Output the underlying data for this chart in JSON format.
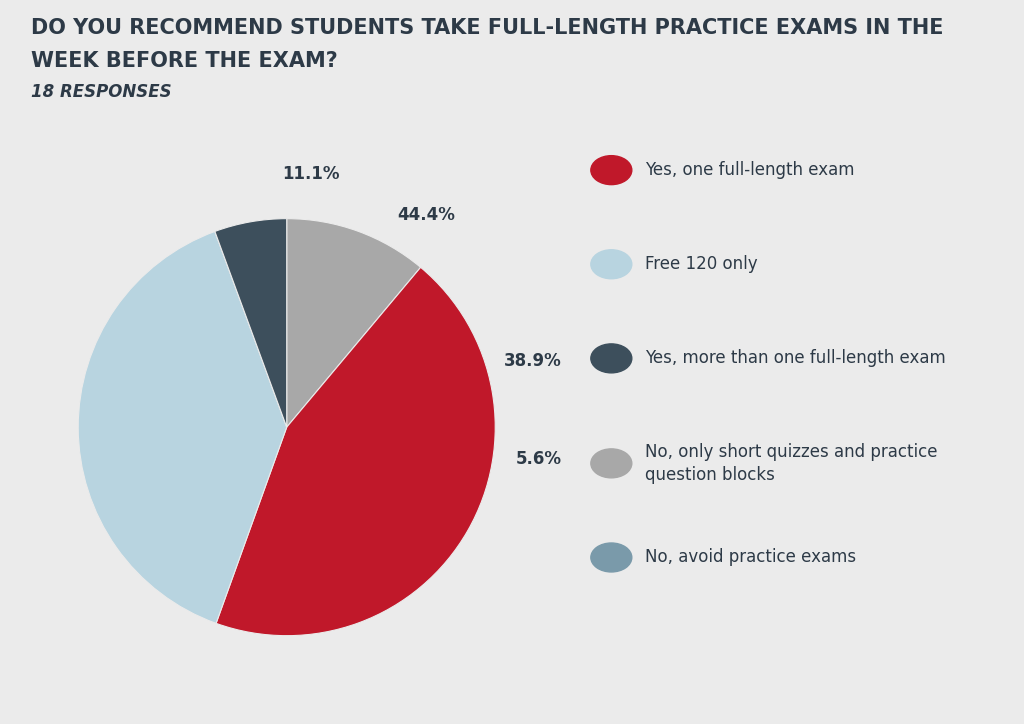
{
  "title_line1": "DO YOU RECOMMEND STUDENTS TAKE FULL-LENGTH PRACTICE EXAMS IN THE",
  "title_line2": "WEEK BEFORE THE EXAM?",
  "subtitle": "18 RESPONSES",
  "background_color": "#ebebeb",
  "slices": [
    11.1,
    44.4,
    38.9,
    5.6
  ],
  "colors": [
    "#a8a8a8",
    "#c0182a",
    "#b8d4e0",
    "#3d4f5c"
  ],
  "pct_labels": [
    "11.1%",
    "44.4%",
    "38.9%",
    "5.6%"
  ],
  "legend_labels": [
    "Yes, one full-length exam",
    "Free 120 only",
    "Yes, more than one full-length exam",
    "No, only short quizzes and practice\nquestion blocks",
    "No, avoid practice exams"
  ],
  "legend_colors": [
    "#c0182a",
    "#b8d4e0",
    "#3d4f5c",
    "#a8a8a8",
    "#7a9aaa"
  ],
  "startangle": 90,
  "title_fontsize": 15,
  "subtitle_fontsize": 12,
  "label_fontsize": 12,
  "legend_fontsize": 12,
  "text_color": "#2d3a47"
}
